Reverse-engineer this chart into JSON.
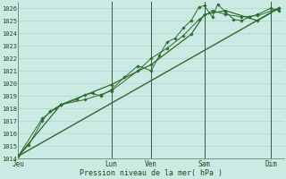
{
  "bg_color": "#cceae4",
  "grid_color": "#aacccc",
  "line_color": "#2d6b2d",
  "ylabel": "Pression niveau de la mer( hPa )",
  "ylim": [
    1014,
    1026.5
  ],
  "yticks": [
    1014,
    1015,
    1016,
    1017,
    1018,
    1019,
    1020,
    1021,
    1022,
    1023,
    1024,
    1025,
    1026
  ],
  "xtick_labels": [
    "Jeu",
    "Lun",
    "Ven",
    "Sam",
    "Dim"
  ],
  "xtick_positions": [
    0,
    35,
    50,
    70,
    95
  ],
  "xvlines": [
    35,
    50,
    70,
    95
  ],
  "xlim": [
    0,
    100
  ],
  "series1": [
    [
      0,
      1014.2
    ],
    [
      4,
      1015.1
    ],
    [
      9,
      1017.0
    ],
    [
      12,
      1017.8
    ],
    [
      14,
      1018.0
    ],
    [
      16,
      1018.3
    ],
    [
      22,
      1018.7
    ],
    [
      25,
      1019.1
    ],
    [
      28,
      1019.2
    ],
    [
      31,
      1019.0
    ],
    [
      35,
      1019.5
    ],
    [
      40,
      1020.5
    ],
    [
      45,
      1021.4
    ],
    [
      50,
      1021.0
    ],
    [
      53,
      1022.2
    ],
    [
      56,
      1023.3
    ],
    [
      59,
      1023.6
    ],
    [
      62,
      1024.4
    ],
    [
      65,
      1025.0
    ],
    [
      68,
      1026.1
    ],
    [
      70,
      1026.2
    ],
    [
      73,
      1025.3
    ],
    [
      75,
      1026.3
    ],
    [
      78,
      1025.7
    ],
    [
      81,
      1025.1
    ],
    [
      84,
      1025.0
    ],
    [
      87,
      1025.3
    ],
    [
      90,
      1025.5
    ],
    [
      95,
      1026.0
    ],
    [
      98,
      1025.8
    ]
  ],
  "series2": [
    [
      0,
      1014.2
    ],
    [
      9,
      1017.2
    ],
    [
      16,
      1018.3
    ],
    [
      25,
      1018.7
    ],
    [
      31,
      1019.1
    ],
    [
      35,
      1019.4
    ],
    [
      45,
      1021.0
    ],
    [
      50,
      1022.0
    ],
    [
      56,
      1022.8
    ],
    [
      62,
      1023.8
    ],
    [
      68,
      1025.1
    ],
    [
      73,
      1025.8
    ],
    [
      78,
      1025.5
    ],
    [
      84,
      1025.3
    ],
    [
      90,
      1025.4
    ],
    [
      98,
      1026.0
    ]
  ],
  "series3": [
    [
      0,
      1014.2
    ],
    [
      16,
      1018.3
    ],
    [
      35,
      1019.9
    ],
    [
      50,
      1021.5
    ],
    [
      65,
      1023.9
    ],
    [
      70,
      1025.5
    ],
    [
      78,
      1025.8
    ],
    [
      90,
      1025.0
    ],
    [
      98,
      1026.0
    ]
  ],
  "trend_line": [
    [
      0,
      1014.2
    ],
    [
      98,
      1026.0
    ]
  ]
}
